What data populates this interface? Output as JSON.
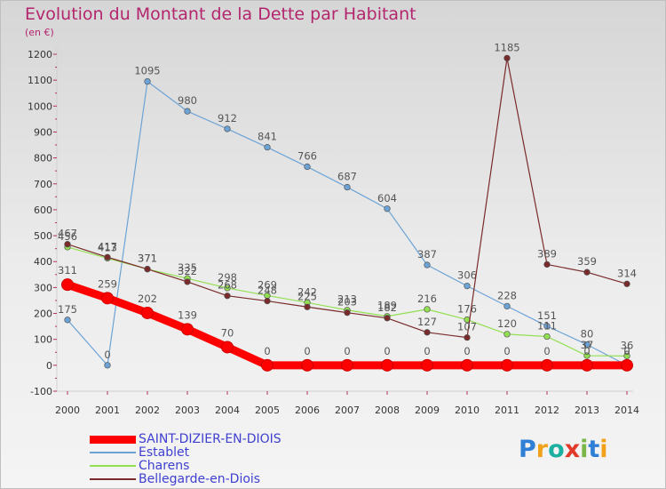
{
  "title": "Evolution du Montant de la Dette par Habitant",
  "subtitle": "(en €)",
  "logo": "Proxiti",
  "chart_data": {
    "type": "line",
    "title": "Evolution du Montant de la Dette par Habitant",
    "ylabel": "(en €)",
    "xlabel": "",
    "x": [
      "2000",
      "2001",
      "2002",
      "2003",
      "2004",
      "2005",
      "2006",
      "2007",
      "2008",
      "2009",
      "2010",
      "2011",
      "2012",
      "2013",
      "2014"
    ],
    "ylim": [
      -100,
      1200
    ],
    "yticks": [
      -100,
      0,
      100,
      200,
      300,
      400,
      500,
      600,
      700,
      800,
      900,
      1000,
      1100,
      1200
    ],
    "grid": false,
    "legend_position": "bottom-left",
    "series": [
      {
        "name": "SAINT-DIZIER-EN-DIOIS",
        "color": "#ff0000",
        "values": [
          311,
          259,
          202,
          139,
          70,
          0,
          0,
          0,
          0,
          0,
          0,
          0,
          0,
          0,
          0
        ]
      },
      {
        "name": "Establet",
        "color": "#6ca3d6",
        "values": [
          175,
          0,
          1095,
          980,
          912,
          841,
          766,
          687,
          604,
          387,
          306,
          228,
          151,
          80,
          0
        ]
      },
      {
        "name": "Charens",
        "color": "#92e052",
        "values": [
          456,
          413,
          371,
          335,
          298,
          269,
          242,
          213,
          189,
          216,
          176,
          120,
          111,
          37,
          36
        ]
      },
      {
        "name": "Bellegarde-en-Diois",
        "color": "#7a2a2a",
        "values": [
          467,
          417,
          371,
          322,
          268,
          248,
          225,
          203,
          182,
          127,
          107,
          1185,
          389,
          359,
          314
        ]
      }
    ]
  }
}
